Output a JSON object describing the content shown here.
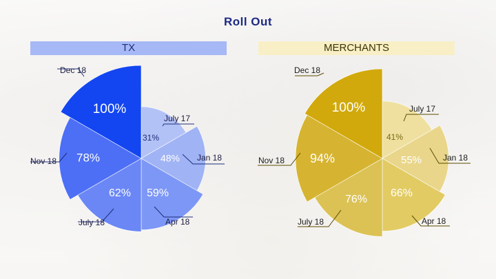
{
  "page": {
    "title": "Roll Out"
  },
  "colors": {
    "title": "#1c2a82",
    "tx_header_bg": "#a7b8f6",
    "merchants_header_bg": "#f8efc6",
    "label_line": "#1d2d7a",
    "merchants_label_line": "#5a4a00"
  },
  "chart_data": [
    {
      "type": "pie",
      "title": "TX",
      "categories": [
        "July 17",
        "Jan 18",
        "Apr 18",
        "July 18",
        "Nov 18",
        "Dec 18"
      ],
      "values": [
        31,
        48,
        59,
        62,
        78,
        100
      ],
      "value_labels": [
        "31%",
        "48%",
        "59%",
        "62%",
        "78%",
        "100%"
      ],
      "colors": [
        "#b3c2f6",
        "#a0b3f5",
        "#7d97f6",
        "#6a87f5",
        "#4d6ff5",
        "#1346f0"
      ],
      "value_label_colors": [
        "#1d2d7a",
        "#ffffff",
        "#ffffff",
        "#ffffff",
        "#ffffff",
        "#ffffff"
      ]
    },
    {
      "type": "pie",
      "title": "MERCHANTS",
      "categories": [
        "July 17",
        "Jan 18",
        "Apr 18",
        "July 18",
        "Nov 18",
        "Dec 18"
      ],
      "values": [
        41,
        55,
        66,
        76,
        94,
        100
      ],
      "value_labels": [
        "41%",
        "55%",
        "66%",
        "76%",
        "94%",
        "100%"
      ],
      "colors": [
        "#efe0a0",
        "#e9d68a",
        "#e2cb63",
        "#dcc255",
        "#d6b431",
        "#d1a90c"
      ],
      "value_label_colors": [
        "#7a6a10",
        "#ffffff",
        "#ffffff",
        "#ffffff",
        "#ffffff",
        "#ffffff"
      ]
    }
  ]
}
